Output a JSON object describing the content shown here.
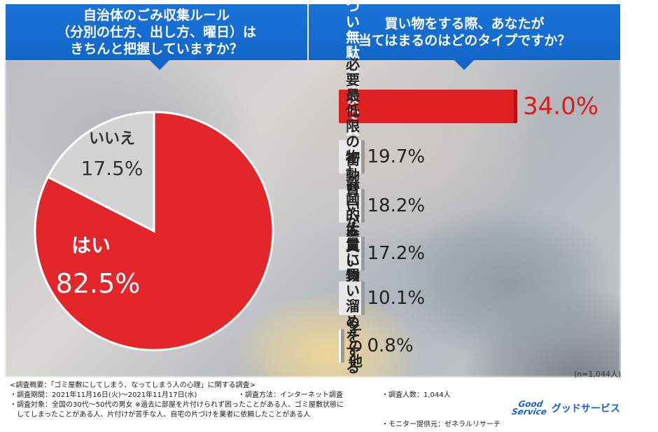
{
  "left_banner": {
    "title": "自治体のごみ収集ルール\n（分別の仕方、出し方、曜日）は\nきちんと把握していますか？"
  },
  "right_banner": {
    "title": "買い物をする際、あなたが\n当てはまるのはどのタイプですか？"
  },
  "chart_data": [
    {
      "type": "pie",
      "categories": [
        "はい",
        "いいえ"
      ],
      "values": [
        82.5,
        17.5
      ],
      "value_labels": [
        "82.5%",
        "17.5%"
      ],
      "colors": [
        "#e3262a",
        "#d3d3d3"
      ]
    },
    {
      "type": "bar",
      "orientation": "horizontal",
      "categories": [
        "つい無駄な物まで\n買ってしまう",
        "必要最低限の物しか買わない",
        "衝動買いが多い",
        "計画的に買い物をする",
        "大量に買い溜めをする",
        "その他"
      ],
      "values": [
        34.0,
        19.7,
        18.2,
        17.2,
        10.1,
        0.8
      ],
      "value_labels": [
        "34.0%",
        "19.7%",
        "18.2%",
        "17.2%",
        "10.1%",
        "0.8%"
      ],
      "highlight_color": "#e02020",
      "bar_color": "#ebebeb",
      "note": "(n=1,044人)"
    }
  ],
  "footer": {
    "overview": "<調査概要：「ゴミ屋敷にしてしまう、なってしまう人の心理」に関する調査>",
    "period": "・調査期間：2021年11月16日(火)～2021年11月17日(水)",
    "method": "・調査方法：インターネット調査",
    "respondents": "・調査人数：1,044人",
    "target_1": "・調査対象：全国の30代～50代の男女 ※過去に部屋を片付けられず困ったことがある人、ゴミ屋敷状態に",
    "target_2": "　してしまったことがある人、片付けが苦手な人、自宅の片づけを業者に依頼したことがある人",
    "provider": "・モニター提供元：ゼネラルリサーチ"
  },
  "logo": {
    "mark_line1": "Good",
    "mark_line2": "Service",
    "text": "グッドサービス"
  }
}
